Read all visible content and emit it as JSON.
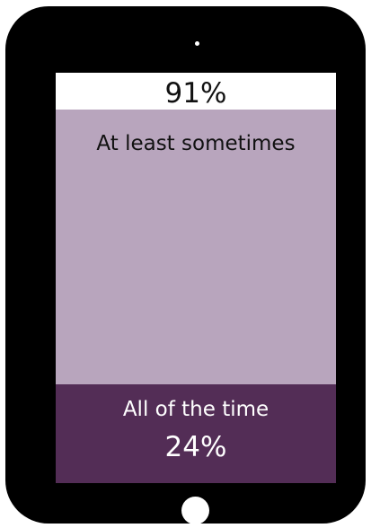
{
  "chart_data": {
    "type": "bar",
    "categories": [
      "At least sometimes",
      "All of the time"
    ],
    "values": [
      91,
      24
    ],
    "value_labels": [
      "91%",
      "24%"
    ],
    "unit": "%",
    "ylim": [
      0,
      100
    ],
    "colors": {
      "at_least_sometimes": "#b8a5bd",
      "all_of_the_time": "#532d56",
      "empty": "#ffffff"
    }
  },
  "device": {
    "frame_color": "#000000",
    "icons": [
      "camera-dot",
      "home-button"
    ]
  }
}
